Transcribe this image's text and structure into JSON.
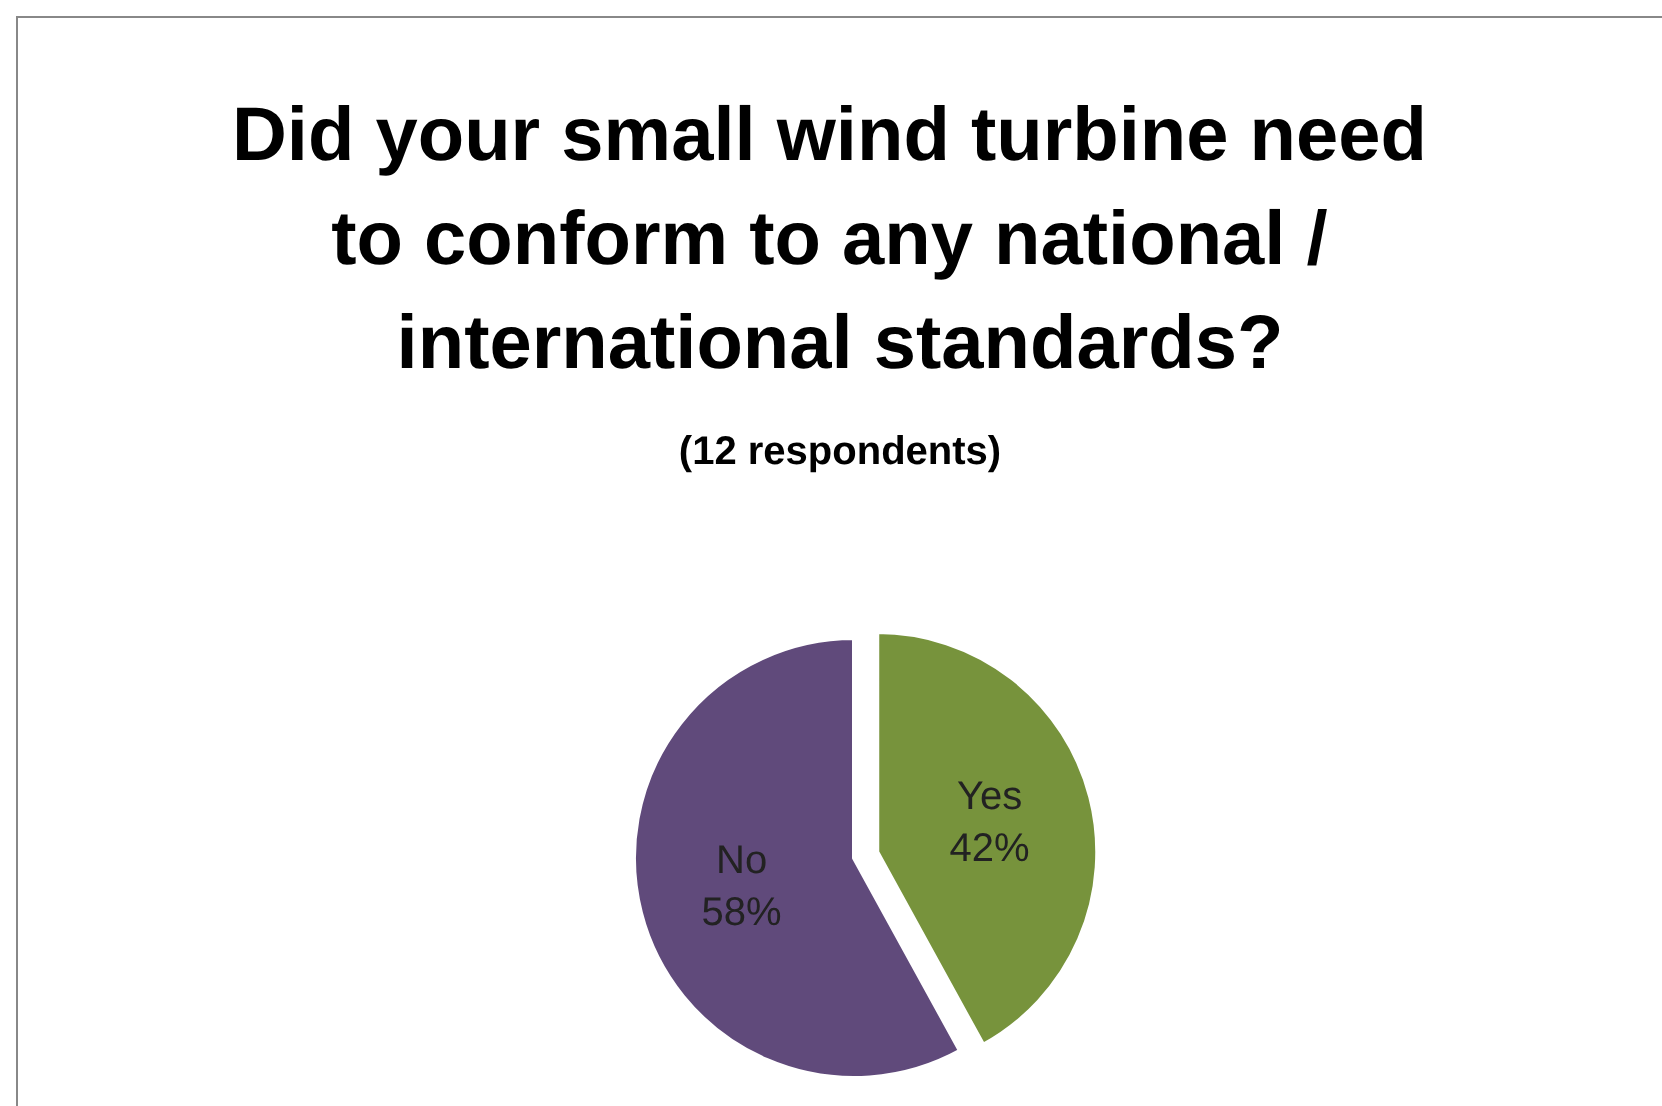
{
  "chart_data": {
    "type": "pie",
    "title": "Did your small wind turbine need to conform to any national / international standards?",
    "subtitle": "(12 respondents)",
    "categories": [
      "Yes",
      "No"
    ],
    "values": [
      42,
      58
    ],
    "colors": [
      "#77933c",
      "#604a7b"
    ],
    "value_labels": [
      "42%",
      "58%"
    ],
    "legend": false
  }
}
